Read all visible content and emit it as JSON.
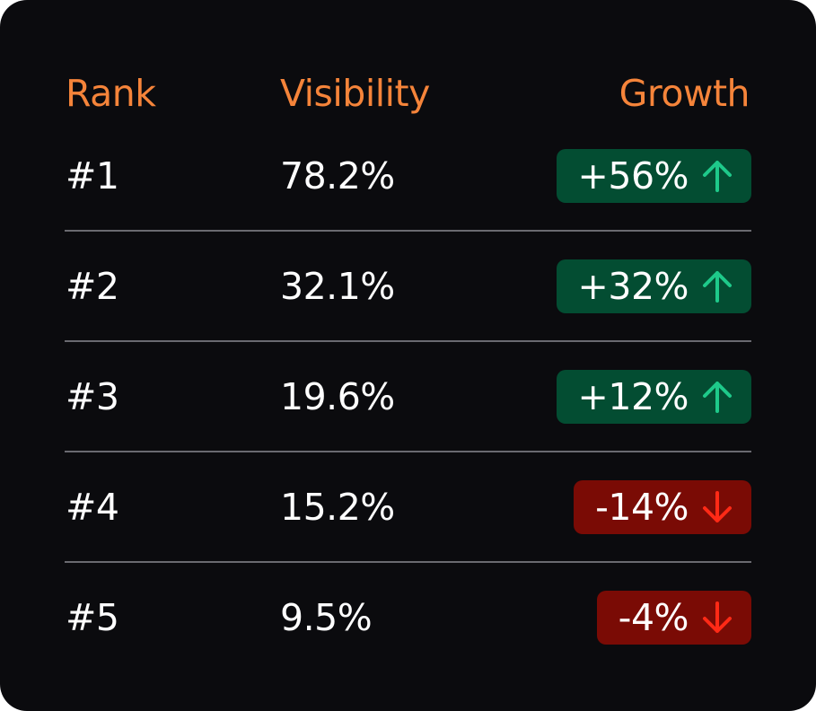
{
  "colors": {
    "background": "#0b0b0e",
    "header_text": "#f5843a",
    "body_text": "#ffffff",
    "positive_badge_bg": "#034d32",
    "positive_arrow": "#1ec98a",
    "negative_badge_bg": "#7a0b05",
    "negative_arrow": "#ff2a16",
    "divider": "#6a6a70"
  },
  "table": {
    "headers": {
      "rank": "Rank",
      "visibility": "Visibility",
      "growth": "Growth"
    },
    "rows": [
      {
        "rank": "#1",
        "visibility": "78.2%",
        "growth": "+56%",
        "direction": "up",
        "icon": "arrow-up-icon"
      },
      {
        "rank": "#2",
        "visibility": "32.1%",
        "growth": "+32%",
        "direction": "up",
        "icon": "arrow-up-icon"
      },
      {
        "rank": "#3",
        "visibility": "19.6%",
        "growth": "+12%",
        "direction": "up",
        "icon": "arrow-up-icon"
      },
      {
        "rank": "#4",
        "visibility": "15.2%",
        "growth": "-14%",
        "direction": "down",
        "icon": "arrow-down-icon"
      },
      {
        "rank": "#5",
        "visibility": "9.5%",
        "growth": "-4%",
        "direction": "down",
        "icon": "arrow-down-icon"
      }
    ]
  }
}
